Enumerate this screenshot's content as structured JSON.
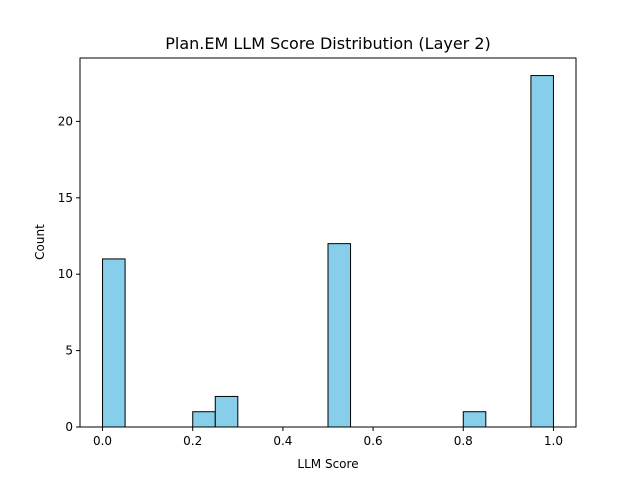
{
  "chart_data": {
    "type": "bar",
    "title": "Plan.EM LLM Score Distribution (Layer 2)",
    "xlabel": "LLM Score",
    "ylabel": "Count",
    "xlim": [
      -0.05,
      1.05
    ],
    "ylim": [
      0,
      24.15
    ],
    "bin_edges": [
      0.0,
      0.05,
      0.1,
      0.15,
      0.2,
      0.25,
      0.3,
      0.35,
      0.4,
      0.45,
      0.5,
      0.55,
      0.6,
      0.65,
      0.7,
      0.75,
      0.8,
      0.85,
      0.9,
      0.95,
      1.0
    ],
    "values": [
      11,
      0,
      0,
      0,
      1,
      2,
      0,
      0,
      0,
      0,
      12,
      0,
      0,
      0,
      0,
      0,
      1,
      0,
      0,
      23
    ],
    "xticks": [
      0.0,
      0.2,
      0.4,
      0.6,
      0.8,
      1.0
    ],
    "xtick_labels": [
      "0.0",
      "0.2",
      "0.4",
      "0.6",
      "0.8",
      "1.0"
    ],
    "yticks": [
      0,
      5,
      10,
      15,
      20
    ],
    "ytick_labels": [
      "0",
      "5",
      "10",
      "15",
      "20"
    ],
    "bar_color": "#87ceeb",
    "edge_color": "#000000",
    "grid": false,
    "legend": false
  }
}
